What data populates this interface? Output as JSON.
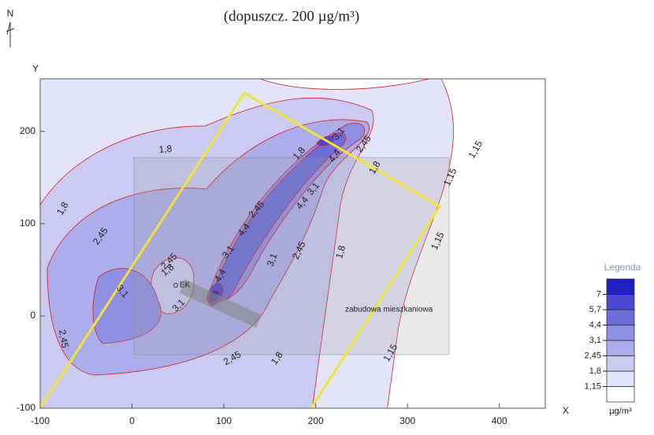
{
  "chart_data": {
    "type": "contour",
    "title": "(dopuszcz. 200 µg/m³)",
    "north": "N",
    "x_label": "X",
    "y_label": "Y",
    "xlim": [
      -100,
      450
    ],
    "ylim": [
      -100,
      257
    ],
    "xticks": [
      -100,
      0,
      100,
      200,
      300,
      400
    ],
    "yticks": [
      -100,
      0,
      100,
      200
    ],
    "annotations": [
      "EK",
      "zabudowa mieszkaniowa"
    ],
    "legend": {
      "title": "Legenda",
      "unit": "µg/m³",
      "corner": "lower-right",
      "levels": [
        {
          "value": 1.15,
          "label": "1,15"
        },
        {
          "value": 1.8,
          "label": "1,8"
        },
        {
          "value": 2.45,
          "label": "2,45"
        },
        {
          "value": 3.1,
          "label": "3,1"
        },
        {
          "value": 4.4,
          "label": "4,4"
        },
        {
          "value": 5.7,
          "label": "5,7"
        },
        7
      ],
      "colors": [
        "#ffffff",
        "#e3e3f9",
        "#cacaf3",
        "#adadec",
        "#8f8fe4",
        "#6c6cdb",
        "#4848d0",
        "#1f1fc4"
      ]
    }
  }
}
